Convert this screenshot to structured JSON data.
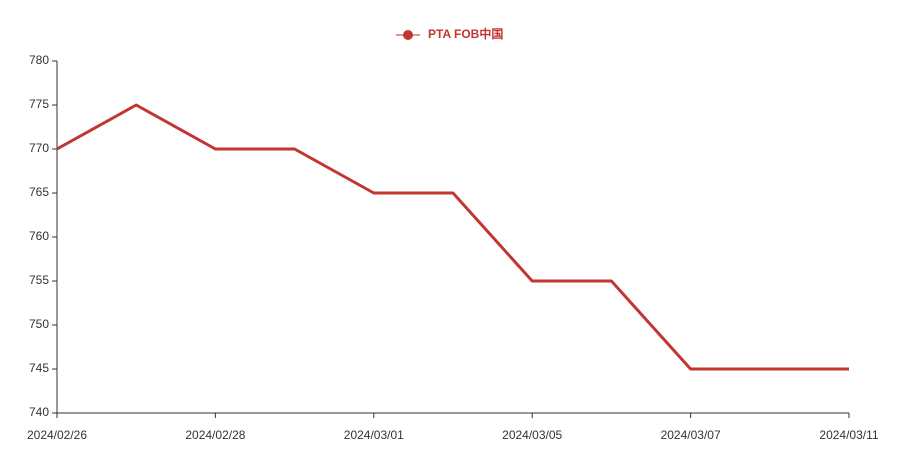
{
  "chart_data": {
    "type": "line",
    "categories": [
      "2024/02/26",
      null,
      "2024/02/28",
      null,
      "2024/03/01",
      null,
      "2024/03/05",
      null,
      "2024/03/07",
      null,
      "2024/03/11"
    ],
    "series": [
      {
        "name": "PTA FOB中国",
        "color": "#c23531",
        "values": [
          770,
          775,
          770,
          770,
          765,
          765,
          755,
          755,
          745,
          745,
          745
        ]
      }
    ],
    "ylim": [
      740,
      780
    ],
    "yticks": [
      740,
      745,
      750,
      755,
      760,
      765,
      770,
      775,
      780
    ],
    "grid": false,
    "legend": "top"
  }
}
